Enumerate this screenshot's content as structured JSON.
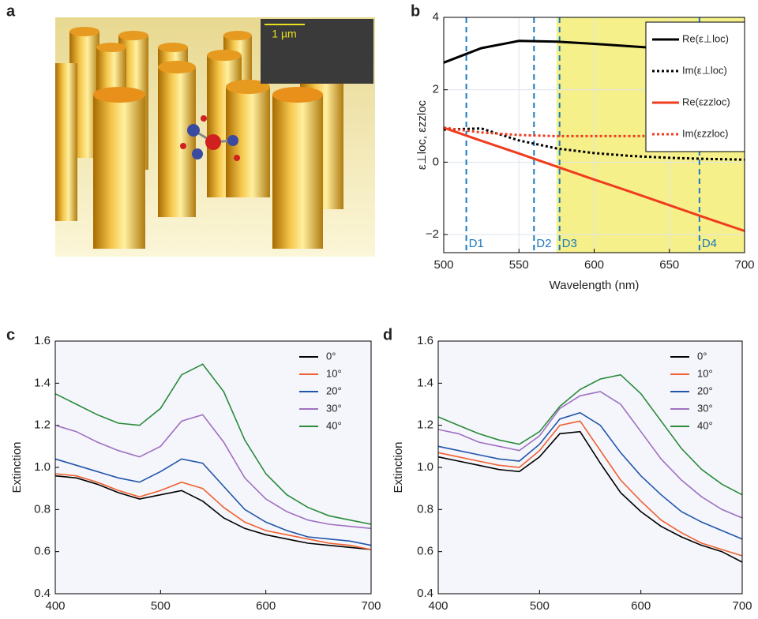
{
  "panel_a": {
    "label": "a",
    "scale_bar": "1 µm"
  },
  "chart_data": [
    {
      "type": "line",
      "panel_label": "b",
      "x_label": "Wavelength (nm)",
      "y_label": "ε⊥loc, εzzloc",
      "x": [
        500,
        525,
        550,
        575,
        600,
        625,
        650,
        675,
        700
      ],
      "series": [
        {
          "name": "Re(ε⊥loc)",
          "color": "#000000",
          "dash": false,
          "values": [
            2.75,
            3.15,
            3.35,
            3.33,
            3.27,
            3.2,
            3.13,
            3.06,
            3.0
          ]
        },
        {
          "name": "Im(ε⊥loc)",
          "color": "#000000",
          "dash": true,
          "values": [
            0.9,
            0.93,
            0.6,
            0.38,
            0.25,
            0.17,
            0.12,
            0.09,
            0.07
          ]
        },
        {
          "name": "Re(εzzloc)",
          "color": "#f03c1e",
          "dash": false,
          "values": [
            0.95,
            0.59,
            0.24,
            -0.12,
            -0.48,
            -0.83,
            -1.19,
            -1.55,
            -1.9
          ]
        },
        {
          "name": "Im(εzzloc)",
          "color": "#f03c1e",
          "dash": true,
          "values": [
            0.95,
            0.82,
            0.75,
            0.72,
            0.72,
            0.72,
            0.73,
            0.74,
            0.75
          ]
        }
      ],
      "xlim": [
        500,
        700
      ],
      "xticks": [
        500,
        550,
        600,
        650,
        700
      ],
      "ylim": [
        -2.5,
        4
      ],
      "yticks": [
        {
          "value": -2,
          "label": "−2"
        },
        0,
        2,
        4
      ],
      "shaded_region": [
        575,
        700
      ],
      "shade_color": "#f5f08a",
      "markers": [
        {
          "x": 515,
          "label": "D1"
        },
        {
          "x": 560,
          "label": "D2"
        },
        {
          "x": 577,
          "label": "D3"
        },
        {
          "x": 670,
          "label": "D4"
        }
      ],
      "grid": true,
      "legend": "upper right",
      "legend_frame": true
    },
    {
      "type": "line",
      "panel_label": "c",
      "x_label": "Wavelength (nm)",
      "y_label": "Extinction",
      "x": [
        400,
        420,
        440,
        460,
        480,
        500,
        520,
        540,
        560,
        580,
        600,
        620,
        640,
        660,
        680,
        700
      ],
      "series": [
        {
          "name": "0°",
          "color": "#000000",
          "values": [
            0.96,
            0.95,
            0.92,
            0.88,
            0.85,
            0.87,
            0.89,
            0.84,
            0.76,
            0.71,
            0.68,
            0.66,
            0.64,
            0.63,
            0.62,
            0.61
          ]
        },
        {
          "name": "10°",
          "color": "#f06030",
          "values": [
            0.97,
            0.96,
            0.93,
            0.89,
            0.86,
            0.89,
            0.93,
            0.9,
            0.81,
            0.74,
            0.7,
            0.68,
            0.66,
            0.64,
            0.63,
            0.61
          ]
        },
        {
          "name": "20°",
          "color": "#2255aa",
          "values": [
            1.04,
            1.01,
            0.98,
            0.95,
            0.93,
            0.98,
            1.04,
            1.02,
            0.91,
            0.8,
            0.74,
            0.7,
            0.67,
            0.66,
            0.65,
            0.63
          ]
        },
        {
          "name": "30°",
          "color": "#a070c0",
          "values": [
            1.2,
            1.17,
            1.12,
            1.08,
            1.05,
            1.1,
            1.22,
            1.25,
            1.12,
            0.95,
            0.85,
            0.79,
            0.75,
            0.73,
            0.72,
            0.71
          ]
        },
        {
          "name": "40°",
          "color": "#2a8a3a",
          "values": [
            1.35,
            1.3,
            1.25,
            1.21,
            1.2,
            1.28,
            1.44,
            1.49,
            1.36,
            1.13,
            0.97,
            0.87,
            0.81,
            0.77,
            0.75,
            0.73
          ]
        }
      ],
      "xlim": [
        400,
        700
      ],
      "xticks": [
        400,
        500,
        600,
        700
      ],
      "ylim": [
        0.4,
        1.6
      ],
      "yticks": [
        0.4,
        0.6,
        0.8,
        {
          "value": 1,
          "label": "1.0"
        },
        1.2,
        1.4,
        1.6
      ],
      "grid": false,
      "legend": "upper right",
      "legend_frame": false
    },
    {
      "type": "line",
      "panel_label": "d",
      "x_label": "Wavelength (nm)",
      "y_label": "Extinction",
      "x": [
        400,
        420,
        440,
        460,
        480,
        500,
        520,
        540,
        560,
        580,
        600,
        620,
        640,
        660,
        680,
        700
      ],
      "series": [
        {
          "name": "0°",
          "color": "#000000",
          "values": [
            1.05,
            1.03,
            1.01,
            0.99,
            0.98,
            1.05,
            1.16,
            1.17,
            1.02,
            0.88,
            0.79,
            0.72,
            0.67,
            0.63,
            0.6,
            0.55
          ]
        },
        {
          "name": "10°",
          "color": "#f06030",
          "values": [
            1.07,
            1.05,
            1.03,
            1.01,
            1.0,
            1.08,
            1.2,
            1.22,
            1.08,
            0.94,
            0.84,
            0.75,
            0.69,
            0.64,
            0.61,
            0.58
          ]
        },
        {
          "name": "20°",
          "color": "#2255aa",
          "values": [
            1.1,
            1.08,
            1.06,
            1.04,
            1.03,
            1.11,
            1.23,
            1.26,
            1.2,
            1.07,
            0.96,
            0.87,
            0.79,
            0.74,
            0.7,
            0.66
          ]
        },
        {
          "name": "30°",
          "color": "#a070c0",
          "values": [
            1.18,
            1.16,
            1.12,
            1.1,
            1.08,
            1.15,
            1.28,
            1.34,
            1.36,
            1.3,
            1.17,
            1.04,
            0.94,
            0.86,
            0.8,
            0.76
          ]
        },
        {
          "name": "40°",
          "color": "#2a8a3a",
          "values": [
            1.24,
            1.2,
            1.16,
            1.13,
            1.11,
            1.17,
            1.29,
            1.37,
            1.42,
            1.44,
            1.35,
            1.22,
            1.09,
            0.99,
            0.92,
            0.87
          ]
        }
      ],
      "xlim": [
        400,
        700
      ],
      "xticks": [
        400,
        500,
        600,
        700
      ],
      "ylim": [
        0.4,
        1.6
      ],
      "yticks": [
        0.4,
        0.6,
        0.8,
        {
          "value": 1,
          "label": "1.0"
        },
        1.2,
        1.4,
        1.6
      ],
      "grid": false,
      "legend": "upper right",
      "legend_frame": false
    }
  ]
}
